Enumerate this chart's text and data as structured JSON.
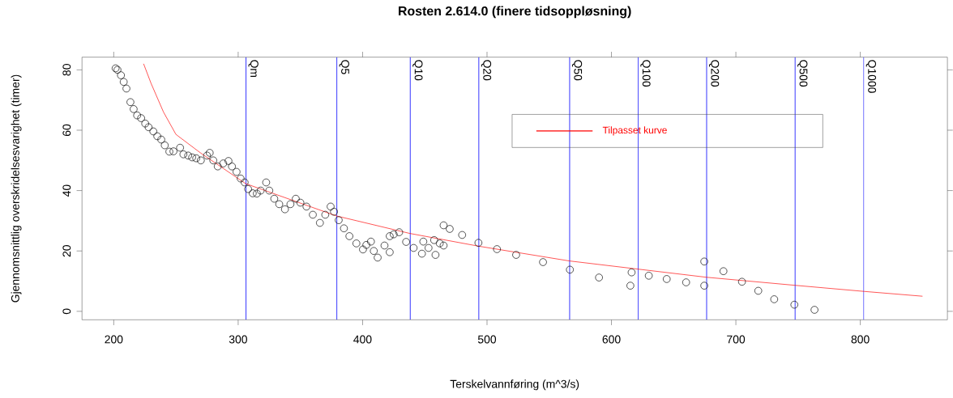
{
  "chart_data": {
    "type": "scatter",
    "title": "Rosten 2.614.0 (finere tidsoppløsning)",
    "xlabel": "Terskelvannføring (m^3/s)",
    "ylabel": "Gjennomsnittlig overskridelsesvarighet (timer)",
    "xlim": [
      174.5,
      870
    ],
    "ylim": [
      -2.8,
      84.2
    ],
    "xticks": [
      200,
      300,
      400,
      500,
      600,
      700,
      800
    ],
    "yticks": [
      0,
      20,
      40,
      60,
      80
    ],
    "legend": "top right",
    "series": [
      {
        "color": "#000000",
        "marker": "circle",
        "x": [
          201.5,
          203,
          205.8,
          208,
          210.2,
          213.4,
          216,
          218.8,
          222,
          225.3,
          228,
          231.8,
          235,
          238.2,
          241,
          244.7,
          248,
          253.3,
          256,
          259.8,
          263,
          266.3,
          270,
          275,
          277.1,
          280,
          283.6,
          288,
          292.2,
          295,
          298.7,
          302,
          305.2,
          308,
          311.7,
          315,
          318.1,
          322.5,
          325,
          329,
          333,
          337.6,
          342,
          346.3,
          350,
          354.9,
          360,
          365.7,
          370,
          374.3,
          377,
          380.8,
          385,
          389.4,
          395,
          400.3,
          403,
          406.7,
          409,
          412.1,
          417.6,
          421.8,
          421.8,
          425,
          429.4,
          435,
          441,
          447.7,
          448.8,
          453,
          457.5,
          458.6,
          462,
          465.1,
          465.1,
          470,
          480,
          493.1,
          508,
          523.4,
          545,
          566.6,
          590,
          615.2,
          616.2,
          630,
          644.4,
          660,
          674.6,
          674.6,
          690,
          704.9,
          718,
          730.8,
          747,
          763.2
        ],
        "values": [
          80.5,
          80,
          78.2,
          76,
          73.8,
          69.3,
          67,
          64.9,
          64,
          62.2,
          61,
          59.6,
          58,
          56.9,
          55,
          52.9,
          53,
          54.2,
          52,
          51.6,
          51,
          50.7,
          50,
          51.6,
          52.5,
          50,
          48,
          49,
          49.8,
          48,
          46.2,
          44,
          42.7,
          40.5,
          39.1,
          39,
          40,
          42.7,
          40,
          37.3,
          35.5,
          33.8,
          35.5,
          37.3,
          36,
          34.7,
          32,
          29.3,
          32,
          34.7,
          33,
          30.2,
          27.5,
          24.9,
          22.5,
          20.5,
          22,
          23.1,
          20,
          17.8,
          21.8,
          19.6,
          24.9,
          25.5,
          26.2,
          23,
          21,
          19.1,
          23.1,
          21,
          23.6,
          18.7,
          22.5,
          21.8,
          28.5,
          27.3,
          25.3,
          22.7,
          20.6,
          18.7,
          16.3,
          13.8,
          11.2,
          8.5,
          12.9,
          11.8,
          10.7,
          9.6,
          8.5,
          16.5,
          13.3,
          9.8,
          6.8,
          4.0,
          2.2,
          0.5
        ]
      },
      {
        "type": "line",
        "name": "Tilpasset kurve",
        "color": "#ff0000",
        "x": [
          224,
          230,
          240,
          250,
          270,
          306,
          379,
          438,
          493,
          566,
          621,
          676,
          748,
          803,
          850
        ],
        "values": [
          82,
          75.5,
          66,
          58.6,
          52.4,
          42.3,
          31.6,
          25.8,
          21.6,
          16.7,
          14.0,
          11.3,
          8.6,
          6.6,
          5.0
        ]
      }
    ],
    "ref_lines": [
      {
        "axis": "x",
        "value": 306.3,
        "label": "Qm",
        "color": "#0000ff"
      },
      {
        "axis": "x",
        "value": 379.3,
        "label": "Q5",
        "color": "#0000ff"
      },
      {
        "axis": "x",
        "value": 438.3,
        "label": "Q10",
        "color": "#0000ff"
      },
      {
        "axis": "x",
        "value": 493.4,
        "label": "Q20",
        "color": "#0000ff"
      },
      {
        "axis": "x",
        "value": 566.4,
        "label": "Q50",
        "color": "#0000ff"
      },
      {
        "axis": "x",
        "value": 621.4,
        "label": "Q100",
        "color": "#0000ff"
      },
      {
        "axis": "x",
        "value": 676.5,
        "label": "Q200",
        "color": "#0000ff"
      },
      {
        "axis": "x",
        "value": 747.6,
        "label": "Q500",
        "color": "#0000ff"
      },
      {
        "axis": "x",
        "value": 802.7,
        "label": "Q1000",
        "color": "#0000ff"
      }
    ]
  }
}
